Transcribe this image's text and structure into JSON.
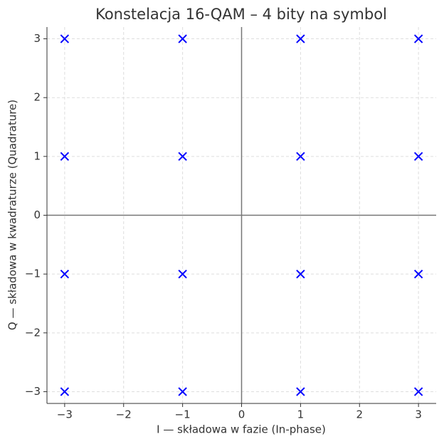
{
  "chart_data": {
    "type": "scatter",
    "title": "Konstelacja 16-QAM – 4 bity na symbol",
    "x_label": "I — składowa w fazie (In-phase)",
    "y_label": "Q — składowa w kwadraturze (Quadrature)",
    "x": [
      -3,
      -3,
      -3,
      -3,
      -1,
      -1,
      -1,
      -1,
      1,
      1,
      1,
      1,
      3,
      3,
      3,
      3
    ],
    "values": [
      -3,
      -1,
      1,
      3,
      -3,
      -1,
      1,
      3,
      -3,
      -1,
      1,
      3,
      -3,
      -1,
      1,
      3
    ],
    "color": "#0000ff",
    "marker": "x",
    "xlim": [
      -3.3,
      3.3
    ],
    "ylim": [
      -3.2,
      3.2
    ],
    "xticks": [
      {
        "value": -3,
        "label": "−3"
      },
      {
        "value": -2,
        "label": "−2"
      },
      {
        "value": -1,
        "label": "−1"
      },
      0,
      1,
      2,
      3
    ],
    "yticks": [
      {
        "value": -3,
        "label": "−3"
      },
      {
        "value": -2,
        "label": "−2"
      },
      {
        "value": -1,
        "label": "−1"
      },
      0,
      1,
      2,
      3
    ],
    "grid": true
  }
}
